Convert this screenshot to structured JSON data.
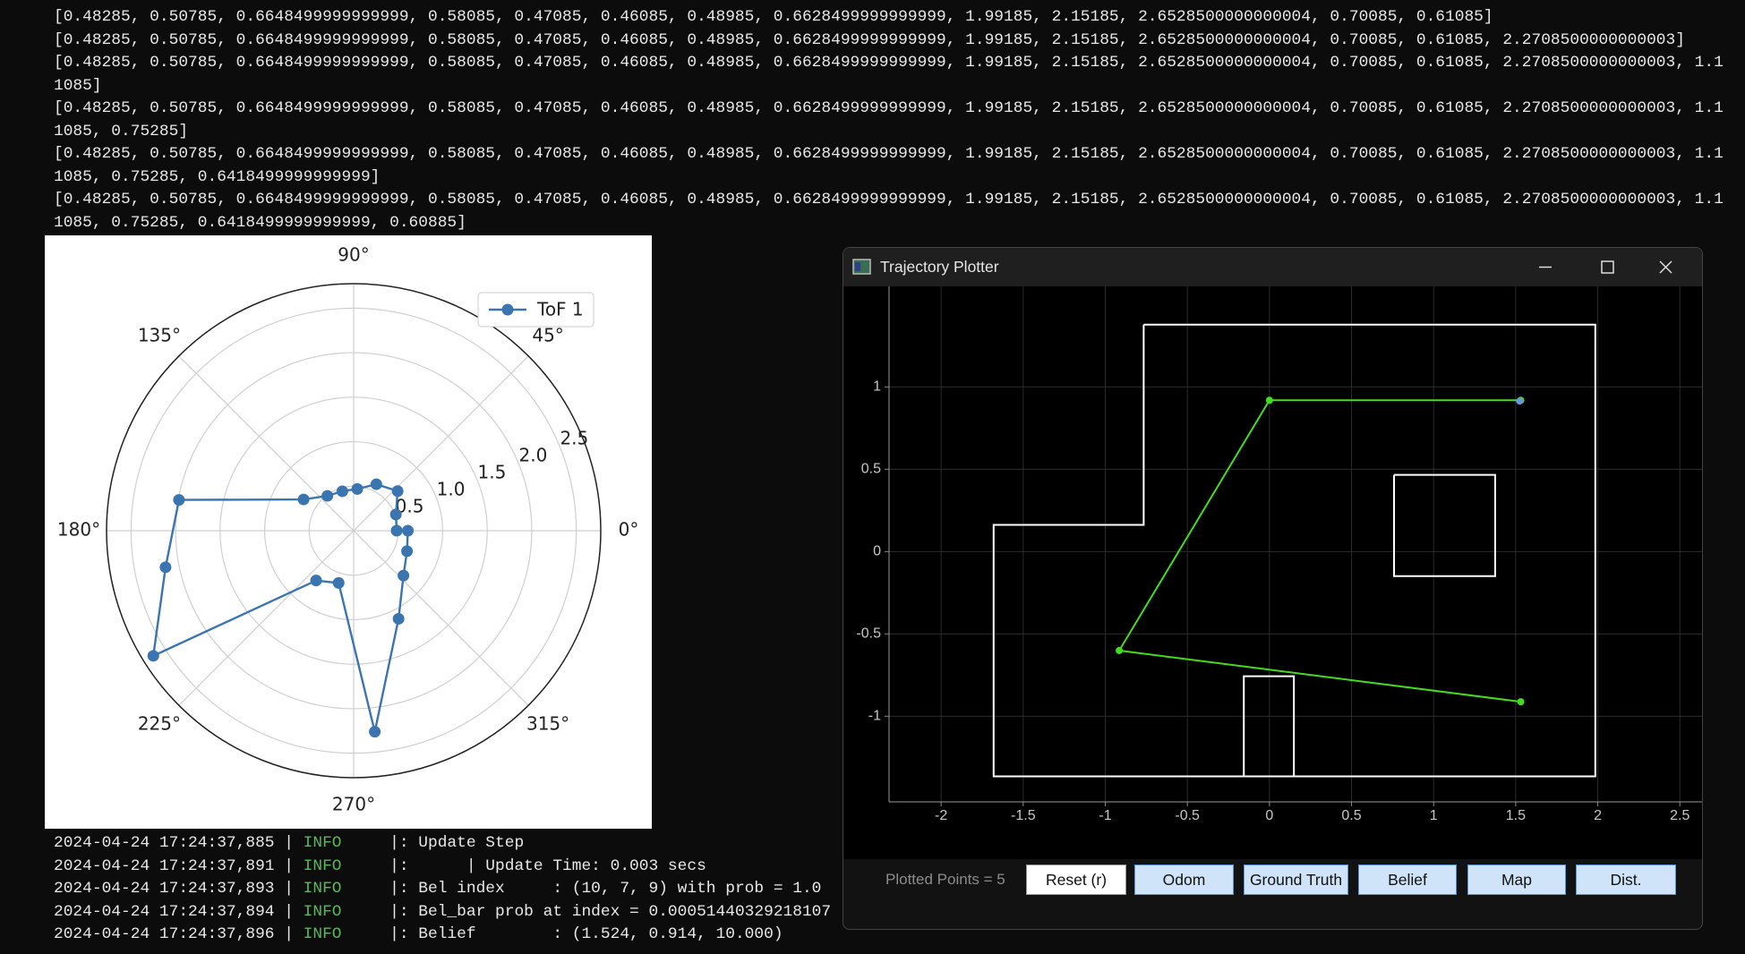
{
  "terminal": {
    "lines": [
      "[0.48285, 0.50785, 0.6648499999999999, 0.58085, 0.47085, 0.46085, 0.48985, 0.6628499999999999, 1.99185, 2.15185, 2.6528500000000004, 0.70085, 0.61085]",
      "[0.48285, 0.50785, 0.6648499999999999, 0.58085, 0.47085, 0.46085, 0.48985, 0.6628499999999999, 1.99185, 2.15185, 2.6528500000000004, 0.70085, 0.61085, 2.2708500000000003]",
      "[0.48285, 0.50785, 0.6648499999999999, 0.58085, 0.47085, 0.46085, 0.48985, 0.6628499999999999, 1.99185, 2.15185, 2.6528500000000004, 0.70085, 0.61085, 2.2708500000000003, 1.11085]",
      "[0.48285, 0.50785, 0.6648499999999999, 0.58085, 0.47085, 0.46085, 0.48985, 0.6628499999999999, 1.99185, 2.15185, 2.6528500000000004, 0.70085, 0.61085, 2.2708500000000003, 1.11085, 0.75285]",
      "[0.48285, 0.50785, 0.6648499999999999, 0.58085, 0.47085, 0.46085, 0.48985, 0.6628499999999999, 1.99185, 2.15185, 2.6528500000000004, 0.70085, 0.61085, 2.2708500000000003, 1.11085, 0.75285, 0.6418499999999999]",
      "[0.48285, 0.50785, 0.6648499999999999, 0.58085, 0.47085, 0.46085, 0.48985, 0.6628499999999999, 1.99185, 2.15185, 2.6528500000000004, 0.70085, 0.61085, 2.2708500000000003, 1.11085, 0.75285, 0.6418499999999999, 0.60885]"
    ]
  },
  "polar_plot": {
    "type": "polar",
    "series_name": "ToF 1",
    "color": "#3b75af",
    "theta": [
      0,
      21,
      42,
      64,
      85,
      106,
      127,
      148,
      170,
      191,
      212,
      233,
      254,
      276,
      297,
      318,
      339,
      360
    ],
    "r": [
      0.48285,
      0.50785,
      0.6648499999999999,
      0.58085,
      0.47085,
      0.46085,
      0.48985,
      0.6628499999999999,
      1.99185,
      2.15185,
      2.6528500000000004,
      0.70085,
      0.61085,
      2.2708500000000003,
      1.11085,
      0.75285,
      0.6418499999999999,
      0.60885
    ],
    "rlim": [
      0,
      2.775
    ],
    "rticks": [
      0.5,
      {
        "value": 1,
        "label": "1.0"
      },
      1.5,
      {
        "value": 2,
        "label": "2.0"
      },
      2.5
    ],
    "thetaticks": [
      {
        "value": 0,
        "label": "0°"
      },
      {
        "value": 45,
        "label": "45°"
      },
      {
        "value": 90,
        "label": "90°"
      },
      {
        "value": 135,
        "label": "135°"
      },
      {
        "value": 180,
        "label": "180°"
      },
      {
        "value": 225,
        "label": "225°"
      },
      {
        "value": 270,
        "label": "270°"
      },
      {
        "value": 315,
        "label": "315°"
      }
    ],
    "grid": true
  },
  "log": {
    "lines": [
      {
        "time": "2024-04-24 17:24:37,885 | ",
        "level": "INFO",
        "message": "     |: Update Step"
      },
      {
        "time": "2024-04-24 17:24:37,891 | ",
        "level": "INFO",
        "message": "     |:      | Update Time: 0.003 secs"
      },
      {
        "time": "2024-04-24 17:24:37,893 | ",
        "level": "INFO",
        "message": "     |: Bel index     : (10, 7, 9) with prob = 1.0"
      },
      {
        "time": "2024-04-24 17:24:37,894 | ",
        "level": "INFO",
        "message": "     |: Bel_bar prob at index = 0.00051440329218107"
      },
      {
        "time": "2024-04-24 17:24:37,896 | ",
        "level": "INFO",
        "message": "     |: Belief        : (1.524, 0.914, 10.000)"
      }
    ]
  },
  "window": {
    "title": "Trajectory Plotter",
    "plot": {
      "type": "scatter",
      "xlim": [
        -2.317,
        2.635
      ],
      "ylim": [
        -1.52,
        1.54
      ],
      "xticks": [
        -2,
        -1.5,
        -1,
        -0.5,
        0,
        0.5,
        1,
        1.5,
        2,
        2.5
      ],
      "yticks": [
        -1,
        -0.5,
        0,
        0.5,
        1
      ],
      "grid": true,
      "map": [
        {
          "x": [
            -0.766,
            1.985,
            1.985,
            -1.68,
            -1.68,
            -0.766,
            -0.766
          ],
          "y": [
            1.378,
            1.378,
            -1.365,
            -1.365,
            0.162,
            0.162,
            1.378
          ]
        },
        {
          "x": [
            0.759,
            1.375,
            1.375,
            0.759,
            0.759
          ],
          "y": [
            0.466,
            0.466,
            -0.149,
            -0.149,
            0.466
          ]
        },
        {
          "x": [
            -0.156,
            -0.156,
            0.149,
            0.149
          ],
          "y": [
            -1.365,
            -0.757,
            -0.757,
            -1.365
          ]
        }
      ],
      "map_color": "#ffffff",
      "trajectory": {
        "x": [
          1.531,
          -0.915,
          0,
          1.531
        ],
        "y": [
          -0.912,
          -0.601,
          0.919,
          0.919
        ],
        "color": "#46dc1e"
      },
      "belief": {
        "x": 1.524,
        "y": 0.914,
        "color": "#6f93dc"
      }
    },
    "status": "Plotted Points = 5",
    "buttons": [
      "Reset (r)",
      "Odom",
      "Ground Truth",
      "Belief",
      "Map",
      "Dist."
    ]
  }
}
